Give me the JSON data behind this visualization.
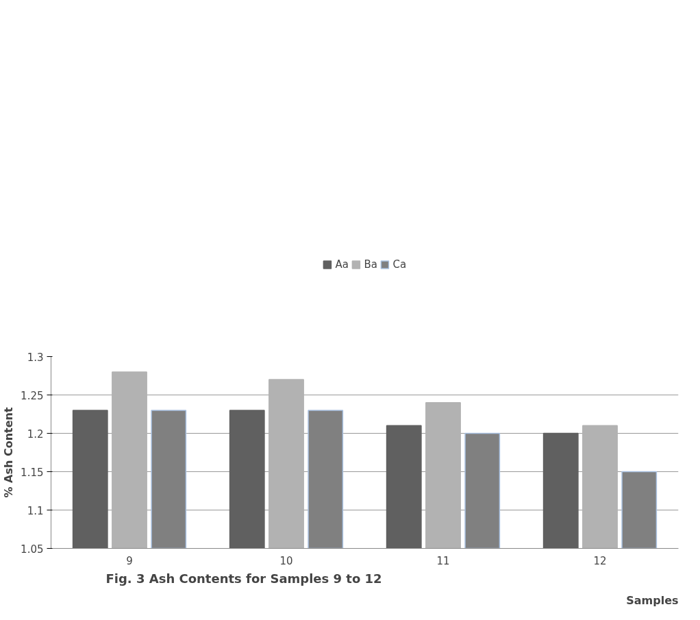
{
  "chart_data": {
    "type": "bar",
    "xlabel": "Samples",
    "ylabel": "% Ash Content",
    "categories": [
      "9",
      "10",
      "11",
      "12"
    ],
    "series": [
      {
        "name": "Aa",
        "color": "#606060",
        "values": [
          1.23,
          1.23,
          1.21,
          1.2
        ]
      },
      {
        "name": "Ba",
        "color": "#b2b2b2",
        "values": [
          1.28,
          1.27,
          1.24,
          1.21
        ]
      },
      {
        "name": "Ca",
        "color": "#808080",
        "values": [
          1.23,
          1.23,
          1.2,
          1.15
        ]
      }
    ],
    "ylim": [
      1.05,
      1.3
    ],
    "yticks": [
      1.05,
      1.1,
      1.15,
      1.2,
      1.25,
      1.3
    ],
    "grid": "y",
    "legend": "top",
    "annotations": [
      "Fig. 3 Ash Contents for Samples 9 to 12"
    ]
  }
}
